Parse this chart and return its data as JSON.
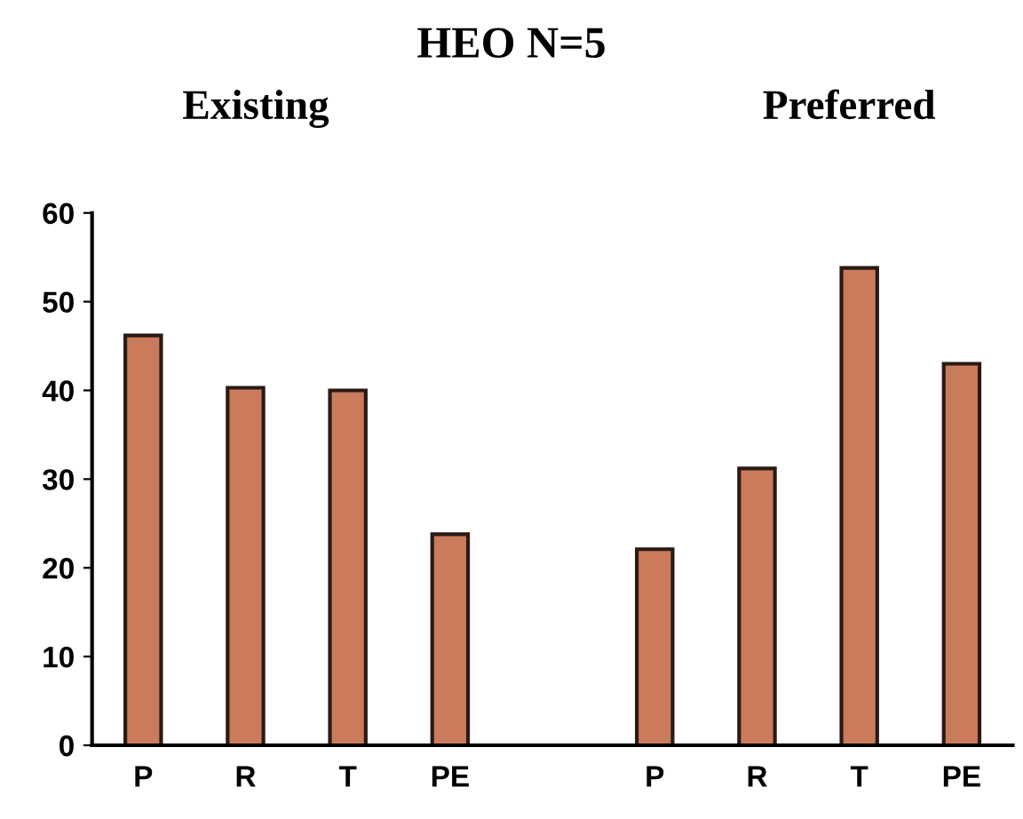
{
  "chart_data": {
    "type": "bar",
    "title": "HEO N=5",
    "annotations": [
      "Existing",
      "Preferred"
    ],
    "categories": [
      "P",
      "R",
      "T",
      "PE",
      null,
      "P",
      "R",
      "T",
      "PE"
    ],
    "values": [
      46.2,
      40.3,
      40,
      23.8,
      null,
      22.1,
      31.2,
      53.8,
      43
    ],
    "color": "#c97b5c",
    "ylim": [
      0,
      60
    ],
    "yticks": [
      0,
      10,
      20,
      30,
      40,
      50,
      60
    ],
    "grid": false
  }
}
